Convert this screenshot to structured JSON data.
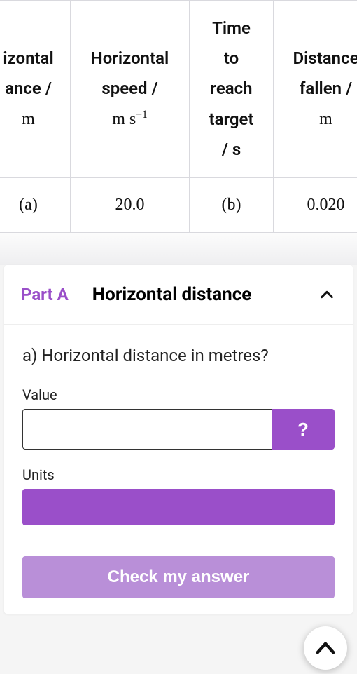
{
  "table": {
    "headers": [
      {
        "lines": [
          "izontal",
          "ance /"
        ],
        "unit_html": "m"
      },
      {
        "lines": [
          "Horizontal",
          "speed /"
        ],
        "unit_html": "m s<sup>&minus;1</sup>"
      },
      {
        "lines": [
          "Time",
          "to",
          "reach",
          "target",
          "/ s"
        ],
        "unit_html": ""
      },
      {
        "lines": [
          "Distance",
          "fallen /"
        ],
        "unit_html": "m"
      }
    ],
    "row": [
      "(a)",
      "20.0",
      "(b)",
      "0.020"
    ],
    "col_widths": [
      "120px",
      "170px",
      "120px",
      "150px"
    ]
  },
  "part": {
    "label": "Part A",
    "title": "Horizontal distance",
    "question": "a) Horizontal distance in metres?",
    "value_label": "Value",
    "value": "",
    "units_label": "Units",
    "hint_label": "?",
    "check_label": "Check my answer"
  }
}
